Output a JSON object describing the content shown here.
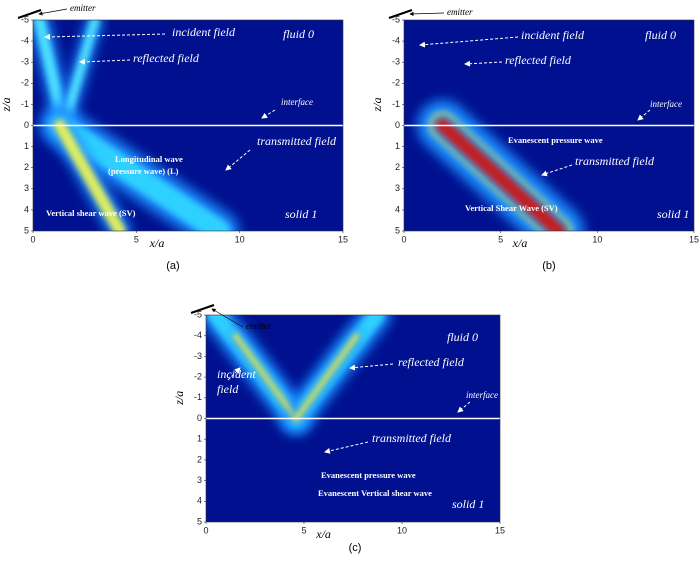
{
  "panels": [
    {
      "caption": "(a)",
      "x_label": "x/a",
      "z_label": "z/a",
      "x_ticks": [
        0,
        5,
        10,
        15
      ],
      "z_ticks": [
        -5,
        -4,
        -3,
        -2,
        -1,
        0,
        1,
        2,
        3,
        4,
        5
      ],
      "annotations": [
        "emitter",
        "incident field",
        "reflected field",
        "fluid 0",
        "interface",
        "transmitted field",
        "Longitudinal wave",
        "(pressure wave) (L)",
        "Vertical shear wave (SV)",
        "solid 1"
      ]
    },
    {
      "caption": "(b)",
      "x_label": "x/a",
      "z_label": "z/a",
      "x_ticks": [
        0,
        5,
        10,
        15
      ],
      "z_ticks": [
        -5,
        -4,
        -3,
        -2,
        -1,
        0,
        1,
        2,
        3,
        4,
        5
      ],
      "annotations": [
        "emitter",
        "incident field",
        "fluid 0",
        "reflected field",
        "interface",
        "Evanescent pressure wave",
        "transmitted field",
        "Vertical Shear Wave (SV)",
        "solid 1"
      ]
    },
    {
      "caption": "(c)",
      "x_label": "x/a",
      "z_label": "z/a",
      "x_ticks": [
        0,
        5,
        10,
        15
      ],
      "z_ticks": [
        -5,
        -4,
        -3,
        -2,
        -1,
        0,
        1,
        2,
        3,
        4,
        5
      ],
      "annotations": [
        "emitter",
        "fluid 0",
        "reflected field",
        "incident",
        "field",
        "interface",
        "transmitted field",
        "Evanescent pressure wave",
        "Evanescent Vertical shear wave",
        "solid 1"
      ]
    }
  ]
}
